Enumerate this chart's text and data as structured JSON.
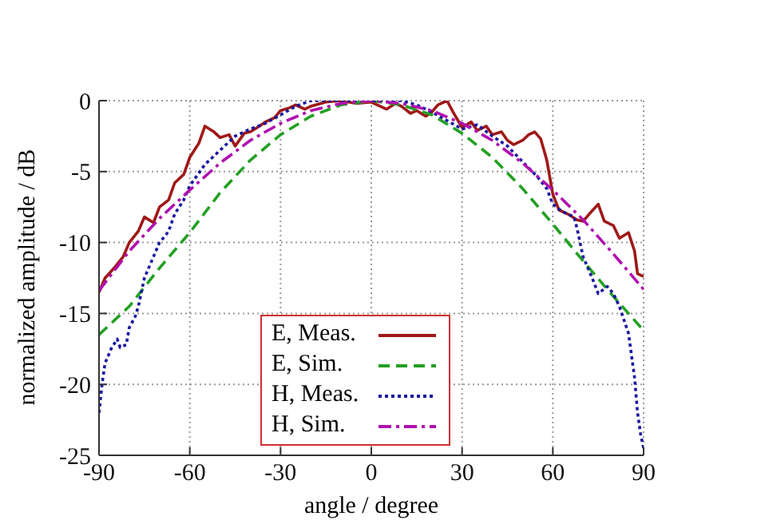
{
  "chart_data": {
    "type": "line",
    "xlabel": "angle / degree",
    "ylabel": "normalized amplitude / dB",
    "xlim": [
      -90,
      90
    ],
    "xticks": [
      -90,
      -60,
      -30,
      0,
      30,
      60,
      90
    ],
    "ylim": [
      -25,
      0
    ],
    "yticks": [
      0,
      -5,
      -10,
      -15,
      -20,
      -25
    ],
    "grid": true,
    "legend": "bottom",
    "marker": "none",
    "series": [
      {
        "name": "E, Meas.",
        "color": "#a01818",
        "line_style": "solid",
        "x": [
          -90,
          -88,
          -85,
          -82,
          -80,
          -77,
          -75,
          -72,
          -70,
          -67,
          -65,
          -62,
          -60,
          -57,
          -55,
          -52,
          -50,
          -47,
          -45,
          -42,
          -40,
          -37,
          -35,
          -32,
          -30,
          -27,
          -25,
          -22,
          -20,
          -15,
          -10,
          -5,
          0,
          5,
          8,
          10,
          13,
          15,
          18,
          20,
          22,
          25,
          27,
          30,
          33,
          35,
          38,
          40,
          43,
          45,
          47,
          50,
          52,
          54,
          56,
          58,
          60,
          62,
          65,
          68,
          70,
          72,
          75,
          77,
          80,
          82,
          85,
          87,
          88,
          90
        ],
        "values": [
          -13.5,
          -12.5,
          -11.8,
          -11,
          -10,
          -9.2,
          -8.2,
          -8.6,
          -7.5,
          -7,
          -5.8,
          -5.2,
          -4,
          -3,
          -1.8,
          -2.2,
          -2.6,
          -2.4,
          -3.2,
          -2.3,
          -2.2,
          -1.8,
          -1.5,
          -1.2,
          -0.7,
          -0.5,
          -0.3,
          -0.6,
          -0.4,
          -0.1,
          0,
          -0.2,
          -0.1,
          -0.6,
          -0.2,
          -0.4,
          -0.9,
          -0.7,
          -1.1,
          -0.8,
          -0.3,
          0,
          -0.8,
          -1.9,
          -1.5,
          -2.1,
          -1.8,
          -2.4,
          -2.2,
          -2.8,
          -3.1,
          -2.8,
          -2.4,
          -2.2,
          -2.7,
          -4.2,
          -6.6,
          -7.7,
          -8,
          -8.4,
          -8.5,
          -8,
          -7.3,
          -8.5,
          -8.8,
          -9.7,
          -9.3,
          -10.6,
          -12.2,
          -12.4
        ]
      },
      {
        "name": "E, Sim.",
        "color": "#22a022",
        "line_style": "dashed",
        "x": [
          -90,
          -80,
          -70,
          -60,
          -50,
          -40,
          -30,
          -20,
          -10,
          0,
          10,
          20,
          30,
          40,
          50,
          60,
          70,
          80,
          90
        ],
        "values": [
          -16.5,
          -14.5,
          -11.8,
          -9.3,
          -6.5,
          -4.2,
          -2.4,
          -1.1,
          -0.3,
          0,
          -0.3,
          -1,
          -2.3,
          -4,
          -6.2,
          -8.7,
          -11.3,
          -13.8,
          -16.2
        ]
      },
      {
        "name": "H, Meas.",
        "color": "#1818a0",
        "line_style": "dotted",
        "x": [
          -90,
          -89,
          -88,
          -86,
          -84,
          -83,
          -81,
          -80,
          -78,
          -77,
          -75,
          -72,
          -70,
          -68,
          -67,
          -65,
          -62,
          -60,
          -55,
          -50,
          -45,
          -40,
          -35,
          -30,
          -25,
          -20,
          -10,
          0,
          10,
          15,
          20,
          25,
          30,
          35,
          40,
          45,
          50,
          55,
          58,
          60,
          63,
          65,
          67,
          68,
          70,
          73,
          75,
          78,
          80,
          82,
          85,
          87,
          88,
          89,
          90
        ],
        "values": [
          -22,
          -20,
          -18.5,
          -17.5,
          -16.8,
          -17.4,
          -17.2,
          -16,
          -15.2,
          -14.5,
          -12.5,
          -11,
          -10,
          -9.5,
          -9.2,
          -8,
          -7,
          -6,
          -4.5,
          -3.5,
          -2.5,
          -2,
          -1.6,
          -1,
          -0.4,
          0,
          0,
          0,
          0,
          -0.3,
          -0.8,
          -1.4,
          -2,
          -1.7,
          -2.5,
          -3.2,
          -4.3,
          -5.4,
          -6.2,
          -7.3,
          -7.8,
          -8,
          -8.2,
          -9,
          -11,
          -12.5,
          -13.6,
          -13.1,
          -13.6,
          -14.5,
          -16.4,
          -19.5,
          -22,
          -23.5,
          -24.5
        ]
      },
      {
        "name": "H, Sim.",
        "color": "#b010b0",
        "line_style": "dashdot",
        "x": [
          -90,
          -80,
          -70,
          -60,
          -50,
          -40,
          -30,
          -20,
          -10,
          0,
          10,
          20,
          30,
          40,
          50,
          60,
          70,
          80,
          90
        ],
        "values": [
          -13.4,
          -10.6,
          -8.3,
          -6.3,
          -4.4,
          -2.8,
          -1.6,
          -0.7,
          -0.2,
          0,
          -0.2,
          -0.7,
          -1.6,
          -2.8,
          -4.4,
          -6.3,
          -8.4,
          -10.8,
          -13.3
        ]
      }
    ]
  }
}
